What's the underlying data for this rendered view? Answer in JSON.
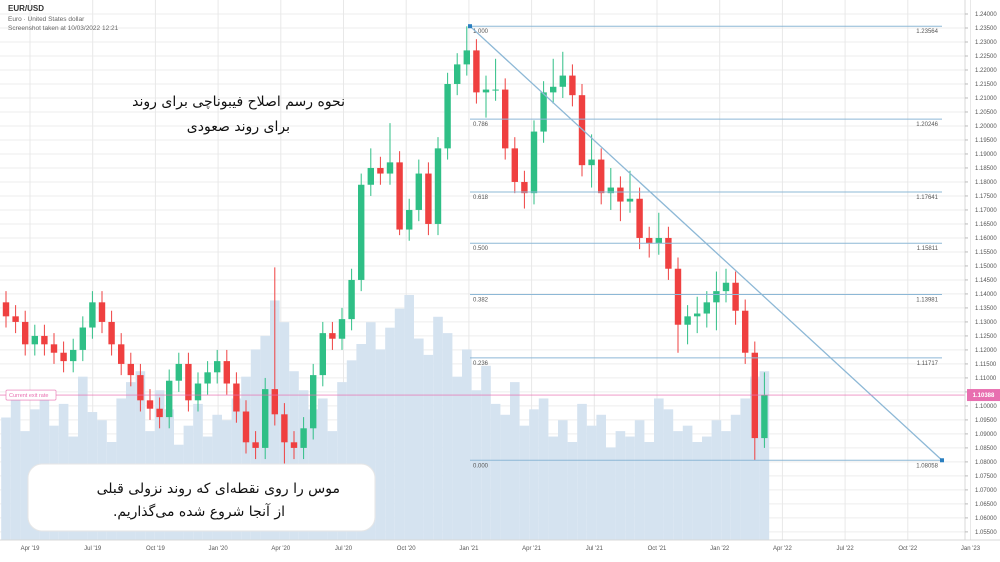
{
  "chart_data": {
    "type": "candlestick",
    "title": "EUR/USD",
    "subtitle": "Euro · United States dollar",
    "caption": "Screenshot taken at 10/03/2022 12:21",
    "x_labels": [
      "Apr '19",
      "Jul '19",
      "Oct '19",
      "Jan '20",
      "Apr '20",
      "Jul '20",
      "Oct '20",
      "Jan '21",
      "Apr '21",
      "Jul '21",
      "Oct '21",
      "Jan '22",
      "Apr '22",
      "Jul '22",
      "Oct '22",
      "Jan '23"
    ],
    "open": [
      1.137,
      1.132,
      1.13,
      1.122,
      1.125,
      1.122,
      1.119,
      1.116,
      1.12,
      1.128,
      1.137,
      1.13,
      1.122,
      1.115,
      1.111,
      1.102,
      1.099,
      1.096,
      1.109,
      1.115,
      1.102,
      1.108,
      1.112,
      1.116,
      1.108,
      1.098,
      1.087,
      1.085,
      1.106,
      1.097,
      1.087,
      1.085,
      1.092,
      1.111,
      1.126,
      1.124,
      1.131,
      1.145,
      1.179,
      1.185,
      1.183,
      1.187,
      1.163,
      1.17,
      1.183,
      1.165,
      1.192,
      1.215,
      1.222,
      1.227,
      1.212,
      1.213,
      1.213,
      1.192,
      1.18,
      1.176,
      1.198,
      1.212,
      1.214,
      1.218,
      1.211,
      1.186,
      1.188,
      1.176,
      1.178,
      1.173,
      1.174,
      1.16,
      1.158,
      1.16,
      1.149,
      1.129,
      1.132,
      1.133,
      1.137,
      1.141,
      1.144,
      1.134,
      1.119,
      1.0885
    ],
    "high": [
      1.141,
      1.136,
      1.134,
      1.129,
      1.129,
      1.126,
      1.123,
      1.124,
      1.132,
      1.141,
      1.141,
      1.134,
      1.126,
      1.119,
      1.115,
      1.106,
      1.103,
      1.113,
      1.119,
      1.119,
      1.112,
      1.116,
      1.12,
      1.12,
      1.112,
      1.102,
      1.091,
      1.11,
      1.1495,
      1.101,
      1.091,
      1.096,
      1.115,
      1.13,
      1.13,
      1.135,
      1.149,
      1.183,
      1.192,
      1.189,
      1.201,
      1.191,
      1.174,
      1.188,
      1.187,
      1.196,
      1.219,
      1.226,
      1.2356,
      1.231,
      1.218,
      1.224,
      1.217,
      1.196,
      1.184,
      1.202,
      1.216,
      1.224,
      1.2265,
      1.222,
      1.215,
      1.197,
      1.192,
      1.185,
      1.182,
      1.184,
      1.178,
      1.164,
      1.169,
      1.164,
      1.153,
      1.136,
      1.139,
      1.141,
      1.148,
      1.149,
      1.148,
      1.138,
      1.123,
      1.112
    ],
    "low": [
      1.128,
      1.126,
      1.118,
      1.118,
      1.118,
      1.115,
      1.112,
      1.112,
      1.116,
      1.124,
      1.126,
      1.118,
      1.111,
      1.107,
      1.098,
      1.095,
      1.092,
      1.092,
      1.105,
      1.098,
      1.098,
      1.104,
      1.108,
      1.104,
      1.094,
      1.083,
      1.081,
      1.081,
      1.093,
      1.075,
      1.081,
      1.081,
      1.088,
      1.107,
      1.12,
      1.12,
      1.127,
      1.141,
      1.175,
      1.179,
      1.179,
      1.161,
      1.159,
      1.166,
      1.161,
      1.161,
      1.188,
      1.211,
      1.218,
      1.208,
      1.203,
      1.209,
      1.188,
      1.176,
      1.1705,
      1.172,
      1.194,
      1.208,
      1.21,
      1.207,
      1.182,
      1.178,
      1.172,
      1.17,
      1.166,
      1.169,
      1.156,
      1.153,
      1.154,
      1.145,
      1.119,
      1.122,
      1.126,
      1.128,
      1.127,
      1.137,
      1.129,
      1.115,
      1.08058,
      1.085
    ],
    "close": [
      1.132,
      1.13,
      1.122,
      1.125,
      1.122,
      1.119,
      1.116,
      1.12,
      1.128,
      1.137,
      1.13,
      1.122,
      1.115,
      1.111,
      1.102,
      1.099,
      1.096,
      1.109,
      1.115,
      1.102,
      1.108,
      1.112,
      1.116,
      1.108,
      1.098,
      1.087,
      1.085,
      1.106,
      1.097,
      1.087,
      1.085,
      1.092,
      1.111,
      1.126,
      1.124,
      1.131,
      1.145,
      1.179,
      1.185,
      1.183,
      1.187,
      1.163,
      1.17,
      1.183,
      1.165,
      1.192,
      1.215,
      1.222,
      1.227,
      1.212,
      1.213,
      1.213,
      1.192,
      1.18,
      1.176,
      1.198,
      1.212,
      1.214,
      1.218,
      1.211,
      1.186,
      1.188,
      1.176,
      1.178,
      1.173,
      1.174,
      1.16,
      1.158,
      1.16,
      1.149,
      1.129,
      1.132,
      1.133,
      1.137,
      1.141,
      1.144,
      1.134,
      1.119,
      1.0885,
      1.1039
    ],
    "volume": [
      45,
      52,
      40,
      48,
      55,
      42,
      50,
      38,
      60,
      47,
      44,
      36,
      52,
      58,
      62,
      40,
      55,
      48,
      35,
      42,
      50,
      38,
      46,
      44,
      52,
      60,
      70,
      75,
      88,
      80,
      62,
      55,
      48,
      52,
      40,
      58,
      66,
      72,
      80,
      70,
      78,
      85,
      90,
      74,
      68,
      82,
      76,
      60,
      70,
      55,
      64,
      50,
      46,
      58,
      42,
      48,
      52,
      38,
      44,
      36,
      50,
      42,
      46,
      34,
      40,
      38,
      44,
      36,
      52,
      48,
      40,
      42,
      36,
      38,
      44,
      40,
      46,
      52,
      60,
      62
    ],
    "up_color": "#2fbf86",
    "down_color": "#ef4040",
    "volume_color": "#d5e3f0",
    "ylim": [
      1.0521,
      1.245
    ],
    "yticks": [
      {
        "value": 1.055,
        "label": "1.05500"
      },
      {
        "value": 1.06,
        "label": "1.06000"
      },
      {
        "value": 1.065,
        "label": "1.06500"
      },
      {
        "value": 1.07,
        "label": "1.07000"
      },
      {
        "value": 1.075,
        "label": "1.07500"
      },
      {
        "value": 1.08,
        "label": "1.08000"
      },
      {
        "value": 1.085,
        "label": "1.08500"
      },
      {
        "value": 1.09,
        "label": "1.09000"
      },
      {
        "value": 1.095,
        "label": "1.09500"
      },
      {
        "value": 1.1,
        "label": "1.10000"
      },
      {
        "value": 1.105,
        "label": "1.10500"
      },
      {
        "value": 1.11,
        "label": "1.11000"
      },
      {
        "value": 1.115,
        "label": "1.11500"
      },
      {
        "value": 1.12,
        "label": "1.12000"
      },
      {
        "value": 1.125,
        "label": "1.12500"
      },
      {
        "value": 1.13,
        "label": "1.13000"
      },
      {
        "value": 1.135,
        "label": "1.13500"
      },
      {
        "value": 1.14,
        "label": "1.14000"
      },
      {
        "value": 1.145,
        "label": "1.14500"
      },
      {
        "value": 1.15,
        "label": "1.15000"
      },
      {
        "value": 1.155,
        "label": "1.15500"
      },
      {
        "value": 1.16,
        "label": "1.16000"
      },
      {
        "value": 1.165,
        "label": "1.16500"
      },
      {
        "value": 1.17,
        "label": "1.17000"
      },
      {
        "value": 1.175,
        "label": "1.17500"
      },
      {
        "value": 1.18,
        "label": "1.18000"
      },
      {
        "value": 1.185,
        "label": "1.18500"
      },
      {
        "value": 1.19,
        "label": "1.19000"
      },
      {
        "value": 1.195,
        "label": "1.19500"
      },
      {
        "value": 1.2,
        "label": "1.20000"
      },
      {
        "value": 1.205,
        "label": "1.20500"
      },
      {
        "value": 1.21,
        "label": "1.21000"
      },
      {
        "value": 1.215,
        "label": "1.21500"
      },
      {
        "value": 1.22,
        "label": "1.22000"
      },
      {
        "value": 1.225,
        "label": "1.22500"
      },
      {
        "value": 1.23,
        "label": "1.23000"
      },
      {
        "value": 1.235,
        "label": "1.23500"
      },
      {
        "value": 1.24,
        "label": "1.24000"
      }
    ],
    "grid": true,
    "fib_levels": [
      {
        "ratio": {
          "value": 1,
          "label": "1.000"
        },
        "price": 1.23564
      },
      {
        "ratio": {
          "value": 0.786,
          "label": "0.786"
        },
        "price": 1.20246
      },
      {
        "ratio": {
          "value": 0.618,
          "label": "0.618"
        },
        "price": 1.17641
      },
      {
        "ratio": {
          "value": 0.5,
          "label": "0.500"
        },
        "price": 1.15811
      },
      {
        "ratio": {
          "value": 0.382,
          "label": "0.382"
        },
        "price": 1.13981
      },
      {
        "ratio": {
          "value": 0.236,
          "label": "0.236"
        },
        "price": 1.11717
      },
      {
        "ratio": {
          "value": 0,
          "label": "0.000"
        },
        "price": 1.08058
      }
    ],
    "fib_color": "#8db8d6",
    "current_price": {
      "label": "Current exit rate",
      "value": 1.10388,
      "color": "#e86fb0"
    },
    "annotations": [
      [
        "نحوه رسم اصلاح فیبوناچی برای روند",
        "برای روند صعودی"
      ],
      [
        "موس را روی نقطه‌ای که روند نزولی قبلی",
        "از آنجا شروع شده می‌گذاریم."
      ]
    ]
  }
}
